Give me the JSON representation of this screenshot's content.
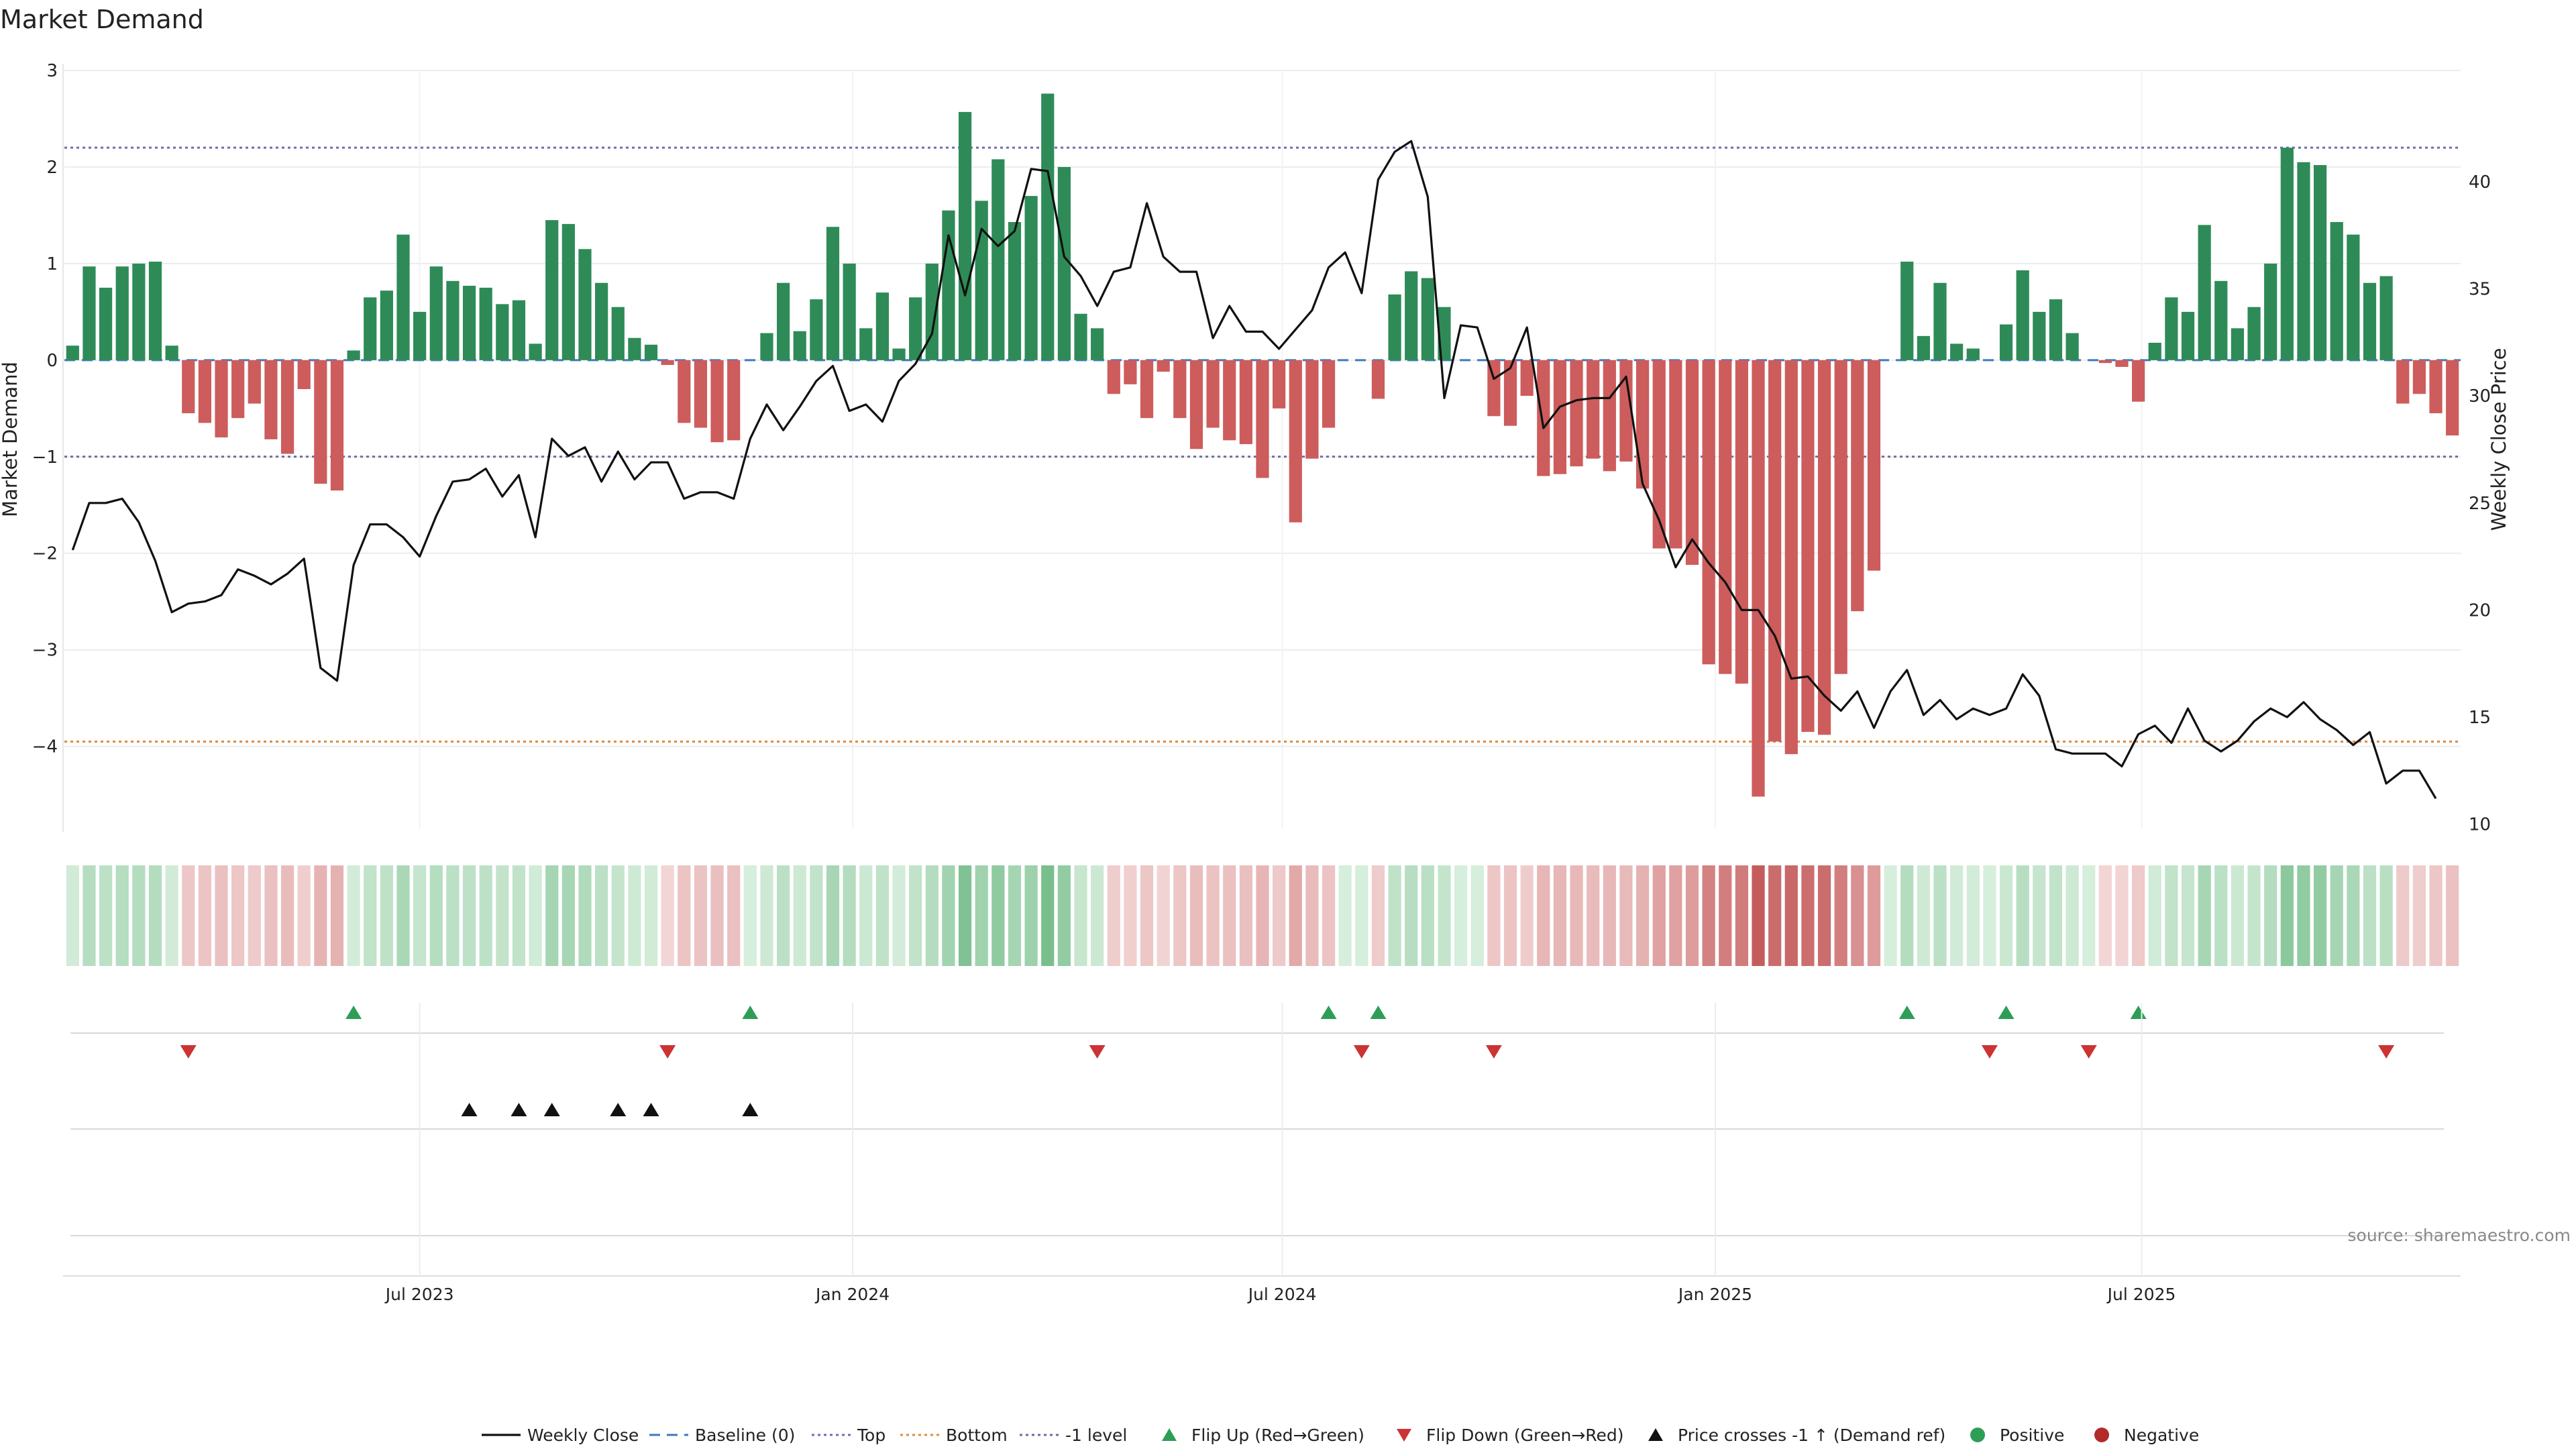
{
  "chart_data": {
    "type": "bar",
    "title": "Market Demand",
    "ylabel": "Market Demand",
    "y2label": "Weekly Close Price",
    "ylim": [
      -4.85,
      3.0
    ],
    "y2lim": [
      9.8,
      45.2
    ],
    "yticks": [
      {
        "value": 3,
        "label": "3"
      },
      {
        "value": 2,
        "label": "2"
      },
      {
        "value": 1,
        "label": "1"
      },
      {
        "value": 0,
        "label": "0"
      },
      {
        "value": -1,
        "label": "−1"
      },
      {
        "value": -2,
        "label": "−2"
      },
      {
        "value": -3,
        "label": "−3"
      },
      {
        "value": -4,
        "label": "−4"
      }
    ],
    "y2ticks": [
      {
        "value": 40,
        "label": "40"
      },
      {
        "value": 35,
        "label": "35"
      },
      {
        "value": 30,
        "label": "30"
      },
      {
        "value": 25,
        "label": "25"
      },
      {
        "value": 20,
        "label": "20"
      },
      {
        "value": 15,
        "label": "15"
      },
      {
        "value": 10,
        "label": "10"
      }
    ],
    "xticks": [
      {
        "index": 21.5,
        "label": "Jul 2023"
      },
      {
        "index": 47.7,
        "label": "Jan 2024"
      },
      {
        "index": 73.7,
        "label": "Jul 2024"
      },
      {
        "index": 99.9,
        "label": "Jan 2025"
      },
      {
        "index": 125.7,
        "label": "Jul 2025"
      }
    ],
    "reference_lines": {
      "top": 2.2,
      "bottom": -3.95,
      "minus_one": -1.0,
      "baseline": 0
    },
    "demand": [
      0.15,
      0.97,
      0.75,
      0.97,
      1.0,
      1.02,
      0.15,
      -0.55,
      -0.65,
      -0.8,
      -0.6,
      -0.45,
      -0.82,
      -0.97,
      -0.3,
      -1.28,
      -1.35,
      0.1,
      0.65,
      0.72,
      1.3,
      0.5,
      0.97,
      0.82,
      0.77,
      0.75,
      0.58,
      0.62,
      0.17,
      1.45,
      1.41,
      1.15,
      0.8,
      0.55,
      0.23,
      0.16,
      -0.05,
      -0.65,
      -0.7,
      -0.85,
      -0.83,
      0.0,
      0.28,
      0.8,
      0.3,
      0.63,
      1.38,
      1.0,
      0.33,
      0.7,
      0.12,
      0.65,
      1.0,
      1.55,
      2.57,
      1.65,
      2.08,
      1.43,
      1.7,
      2.76,
      2.0,
      0.48,
      0.33,
      -0.35,
      -0.25,
      -0.6,
      -0.12,
      -0.6,
      -0.92,
      -0.7,
      -0.83,
      -0.87,
      -1.22,
      -0.5,
      -1.68,
      -1.02,
      -0.7,
      0.0,
      0.0,
      -0.4,
      0.68,
      0.92,
      0.85,
      0.55,
      0.0,
      0.0,
      -0.58,
      -0.68,
      -0.37,
      -1.2,
      -1.18,
      -1.1,
      -1.02,
      -1.15,
      -1.05,
      -1.33,
      -1.95,
      -1.95,
      -2.12,
      -3.15,
      -3.25,
      -3.35,
      -4.52,
      -3.95,
      -4.08,
      -3.85,
      -3.88,
      -3.25,
      -2.6,
      -2.18,
      0.0,
      1.02,
      0.25,
      0.8,
      0.17,
      0.12,
      0.0,
      0.37,
      0.93,
      0.5,
      0.63,
      0.28,
      0.0,
      -0.03,
      -0.07,
      -0.43,
      0.18,
      0.65,
      0.5,
      1.4,
      0.82,
      0.33,
      0.55,
      1.0,
      2.2,
      2.05,
      2.02,
      1.43,
      1.3,
      0.8,
      0.87,
      -0.45,
      -0.35,
      -0.55,
      -0.78
    ],
    "weekly_close": [
      22.8,
      25.0,
      25.0,
      25.2,
      24.1,
      22.3,
      19.9,
      20.3,
      20.4,
      20.7,
      21.9,
      21.6,
      21.2,
      21.7,
      22.4,
      17.3,
      16.7,
      22.1,
      24.0,
      24.0,
      23.4,
      22.5,
      24.4,
      26.0,
      26.1,
      26.6,
      25.3,
      26.3,
      23.4,
      28.0,
      27.2,
      27.6,
      26.0,
      27.4,
      26.1,
      26.9,
      26.9,
      25.2,
      25.5,
      25.5,
      25.2,
      28.0,
      29.6,
      28.4,
      29.5,
      30.7,
      31.4,
      29.3,
      29.6,
      28.8,
      30.7,
      31.5,
      32.9,
      37.5,
      34.7,
      37.8,
      37.0,
      37.7,
      40.6,
      40.5,
      36.5,
      35.6,
      34.2,
      35.8,
      36.0,
      39.0,
      36.5,
      35.8,
      35.8,
      32.7,
      34.2,
      33.0,
      33.0,
      32.2,
      33.1,
      34.0,
      36.0,
      36.7,
      34.8,
      40.1,
      41.4,
      41.9,
      39.3,
      29.9,
      33.3,
      33.2,
      30.8,
      31.3,
      33.2,
      28.5,
      29.5,
      29.8,
      29.9,
      29.9,
      30.9,
      25.9,
      24.2,
      22.0,
      23.3,
      22.2,
      21.3,
      20.0,
      20.0,
      18.8,
      16.8,
      16.9,
      16.0,
      15.3,
      16.2,
      14.5,
      16.2,
      17.2,
      15.1,
      15.8,
      14.9,
      15.4,
      15.1,
      15.4,
      17.0,
      16.0,
      13.5,
      13.3,
      13.3,
      13.3,
      12.7,
      14.2,
      14.6,
      13.8,
      15.4,
      13.9,
      13.4,
      13.9,
      14.8,
      15.4,
      15.0,
      15.7,
      14.9,
      14.4,
      13.7,
      14.3,
      11.9,
      12.5,
      12.5,
      11.2
    ],
    "flip_up": [
      17,
      41,
      76,
      79,
      111,
      117,
      125
    ],
    "flip_down": [
      7,
      36,
      62,
      78,
      86,
      116,
      122,
      140
    ],
    "price_crosses": [
      24,
      27,
      29,
      33,
      35,
      41
    ],
    "legend": [
      {
        "key": "weekly-close",
        "label": "Weekly Close",
        "color": "#111111"
      },
      {
        "key": "baseline",
        "label": "Baseline (0)",
        "color": "#3a7bbf"
      },
      {
        "key": "top",
        "label": "Top",
        "color": "#6c6cb5"
      },
      {
        "key": "bottom",
        "label": "Bottom",
        "color": "#e08a3c"
      },
      {
        "key": "minus-one",
        "label": "-1 level",
        "color": "#6c6c9c"
      },
      {
        "key": "flip-up",
        "label": "Flip Up (Red→Green)",
        "color": "#2e9e57"
      },
      {
        "key": "flip-down",
        "label": "Flip Down (Green→Red)",
        "color": "#cc3333"
      },
      {
        "key": "price-cross",
        "label": "Price crosses -1 ↑ (Demand ref)",
        "color": "#111111"
      },
      {
        "key": "positive",
        "label": "Positive",
        "color": "#2e9e57"
      },
      {
        "key": "negative",
        "label": "Negative",
        "color": "#b22a2a"
      }
    ],
    "source_note": "source: sharemaestro.com",
    "colors": {
      "positive_bar": "#2e8b57",
      "negative_bar": "#cd5c5c"
    }
  }
}
